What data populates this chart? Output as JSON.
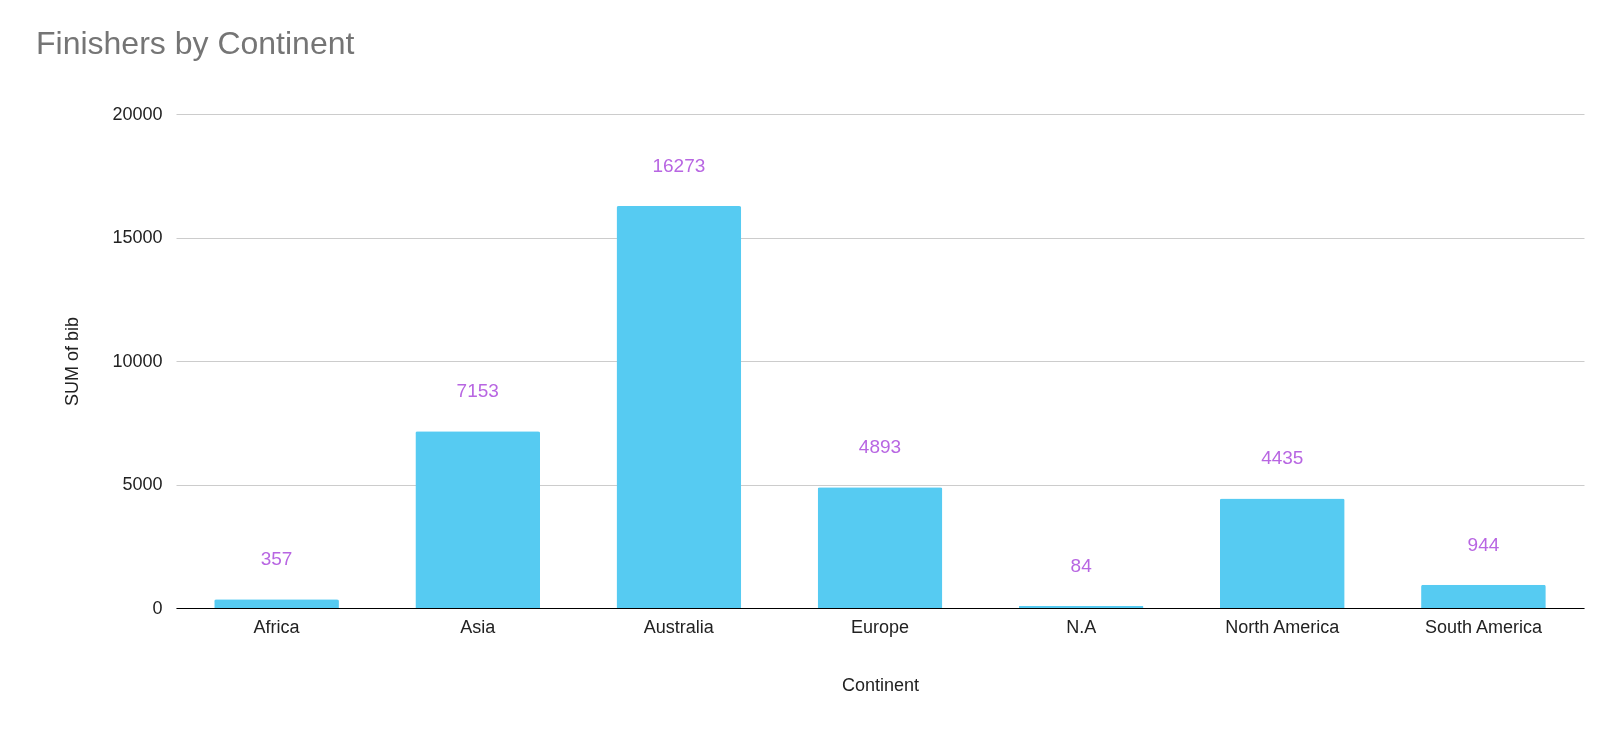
{
  "chart_data": {
    "type": "bar",
    "title": "Finishers by Continent",
    "xlabel": "Continent",
    "ylabel": "SUM of bib",
    "categories": [
      "Africa",
      "Asia",
      "Australia",
      "Europe",
      "N.A",
      "North America",
      "South America"
    ],
    "series": [
      {
        "color": "#56cbf2",
        "values": [
          357,
          7153,
          16273,
          4893,
          84,
          4435,
          944
        ]
      }
    ],
    "ylim": [
      0,
      20000
    ],
    "yticks": [
      0,
      5000,
      10000,
      15000,
      20000
    ],
    "grid": "y",
    "data_labels": true
  }
}
